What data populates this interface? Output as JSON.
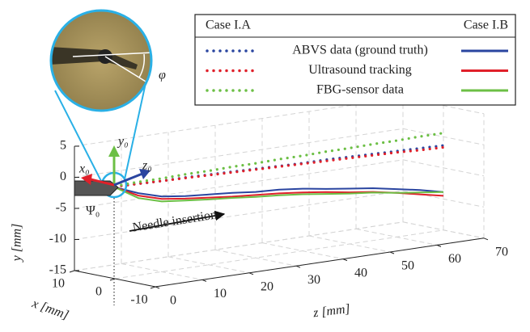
{
  "chart_data": {
    "type": "line3d",
    "legend": {
      "header_left": "Case I.A",
      "header_right": "Case I.B"
    },
    "z": [
      0,
      5,
      10,
      15,
      20,
      25,
      30,
      35,
      40,
      45,
      50,
      55,
      60,
      65,
      70
    ],
    "series": [
      {
        "name": "ABVS data (ground truth)",
        "color": "#2a45a0",
        "case_a": [
          -0.2,
          -0.3,
          -0.4,
          -0.4,
          -0.5,
          -0.6,
          -0.7,
          -0.8,
          -0.9,
          -0.9,
          -1.0,
          -1.1,
          -1.2,
          -1.3,
          -1.4
        ],
        "case_b": [
          -0.3,
          -1.8,
          -2.9,
          -3.4,
          -3.7,
          -4.0,
          -4.4,
          -4.6,
          -5.0,
          -5.6,
          -6.1,
          -6.6,
          -7.3,
          -8.0,
          -8.9
        ]
      },
      {
        "name": "Ultrasound tracking",
        "color": "#e0202a",
        "case_a": [
          -0.2,
          -0.3,
          -0.4,
          -0.5,
          -0.6,
          -0.7,
          -0.8,
          -0.9,
          -1.0,
          -1.1,
          -1.2,
          -1.3,
          -1.4,
          -1.6,
          -1.7
        ],
        "case_b": [
          -0.3,
          -2.2,
          -3.3,
          -3.8,
          -4.2,
          -4.6,
          -4.9,
          -5.2,
          -5.6,
          -6.1,
          -6.7,
          -7.2,
          -7.9,
          -8.7,
          -9.5
        ]
      },
      {
        "name": "FBG-sensor data",
        "color": "#6cbf45",
        "case_a": [
          -0.1,
          0,
          0,
          0.1,
          0.1,
          0.2,
          0.2,
          0.3,
          0.3,
          0.4,
          0.4,
          0.5,
          0.5,
          0.6,
          0.6
        ],
        "case_b": [
          -0.3,
          -2.6,
          -3.7,
          -4.1,
          -4.5,
          -4.8,
          -5.2,
          -5.5,
          -5.9,
          -6.4,
          -6.9,
          -7.3,
          -7.9,
          -8.4,
          -8.9
        ]
      }
    ],
    "xlabel": "x [mm]",
    "ylabel": "y [mm]",
    "zlabel": "z [mm]",
    "xlim": [
      -10,
      10
    ],
    "xticks": [
      -10,
      0,
      10
    ],
    "ylim": [
      -15,
      5
    ],
    "yticks": [
      -15,
      -10,
      -5,
      0,
      5
    ],
    "zlim": [
      0,
      70
    ],
    "zticks": [
      0,
      10,
      20,
      30,
      40,
      50,
      60,
      70
    ],
    "grid": true,
    "annotations": {
      "insertion": "Needle insertion",
      "x0": "x₀",
      "y0": "y₀",
      "z0": "z₀",
      "psi0": "Ψ₀",
      "phi": "φ"
    }
  }
}
